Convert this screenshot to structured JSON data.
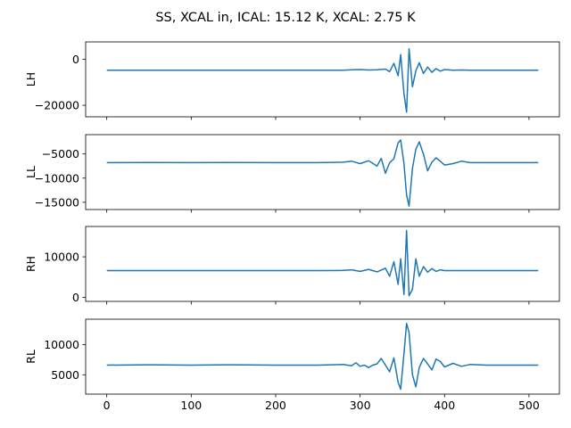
{
  "suptitle": "SS, XCAL in, ICAL: 15.12 K, XCAL: 2.75 K",
  "chart_data": [
    {
      "type": "line",
      "ylabel": "LH",
      "xlim": [
        -25,
        536
      ],
      "ylim": [
        -25000,
        7500
      ],
      "xticks": [
        0,
        100,
        200,
        300,
        400,
        500
      ],
      "yticks": [
        {
          "v": 0,
          "label": "0"
        },
        {
          "v": -20000,
          "label": "−20000"
        }
      ],
      "series": [
        {
          "color": "#1f77b4",
          "x": [
            0,
            100,
            200,
            250,
            280,
            290,
            300,
            310,
            320,
            330,
            335,
            340,
            345,
            348,
            352,
            355,
            358,
            362,
            366,
            370,
            375,
            380,
            385,
            390,
            395,
            400,
            410,
            420,
            430,
            450,
            480,
            511
          ],
          "y": [
            -4800,
            -4800,
            -4800,
            -4800,
            -4750,
            -4600,
            -4500,
            -4700,
            -4600,
            -4300,
            -5400,
            -1800,
            -7200,
            2000,
            -15000,
            -23000,
            4500,
            -12000,
            -5000,
            -1500,
            -6200,
            -3400,
            -5700,
            -4100,
            -5200,
            -4500,
            -4800,
            -4700,
            -4800,
            -4800,
            -4800,
            -4800
          ]
        }
      ]
    },
    {
      "type": "line",
      "ylabel": "LL",
      "xlim": [
        -25,
        536
      ],
      "ylim": [
        -16500,
        -1000
      ],
      "xticks": [
        0,
        100,
        200,
        300,
        400,
        500
      ],
      "yticks": [
        {
          "v": -5000,
          "label": "−5000"
        },
        {
          "v": -10000,
          "label": "−10000"
        },
        {
          "v": -15000,
          "label": "−15000"
        }
      ],
      "series": [
        {
          "color": "#1f77b4",
          "x": [
            0,
            50,
            100,
            150,
            200,
            250,
            280,
            290,
            300,
            310,
            320,
            325,
            330,
            335,
            340,
            345,
            348,
            352,
            355,
            358,
            362,
            366,
            370,
            375,
            380,
            385,
            390,
            395,
            400,
            410,
            420,
            430,
            450,
            480,
            511
          ],
          "y": [
            -6800,
            -6750,
            -6800,
            -6750,
            -6800,
            -6800,
            -6700,
            -6500,
            -7000,
            -6400,
            -7500,
            -5900,
            -9000,
            -6800,
            -6000,
            -2700,
            -2100,
            -7000,
            -13500,
            -15800,
            -8000,
            -4000,
            -2500,
            -5000,
            -8500,
            -6700,
            -5800,
            -6500,
            -7300,
            -7000,
            -6500,
            -6800,
            -6800,
            -6800,
            -6800
          ]
        }
      ]
    },
    {
      "type": "line",
      "ylabel": "RH",
      "xlim": [
        -25,
        536
      ],
      "ylim": [
        -1000,
        17500
      ],
      "xticks": [
        0,
        100,
        200,
        300,
        400,
        500
      ],
      "yticks": [
        {
          "v": 10000,
          "label": "10000"
        },
        {
          "v": 0,
          "label": "0"
        }
      ],
      "series": [
        {
          "color": "#1f77b4",
          "x": [
            0,
            100,
            200,
            250,
            280,
            290,
            300,
            310,
            320,
            330,
            335,
            340,
            345,
            348,
            352,
            355,
            358,
            362,
            366,
            370,
            375,
            380,
            385,
            390,
            395,
            400,
            420,
            450,
            480,
            511
          ],
          "y": [
            6600,
            6600,
            6600,
            6600,
            6650,
            6800,
            6400,
            6900,
            6300,
            7200,
            5200,
            8800,
            3200,
            9500,
            700,
            16500,
            400,
            2000,
            9500,
            5200,
            7600,
            6200,
            7100,
            6400,
            6800,
            6600,
            6600,
            6600,
            6600,
            6600
          ]
        }
      ]
    },
    {
      "type": "line",
      "ylabel": "RL",
      "xlim": [
        -25,
        536
      ],
      "ylim": [
        1800,
        14200
      ],
      "xticks": [
        0,
        100,
        200,
        300,
        400,
        500
      ],
      "yticks": [
        {
          "v": 10000,
          "label": "10000"
        },
        {
          "v": 5000,
          "label": "5000"
        }
      ],
      "xticklabels": [
        "0",
        "100",
        "200",
        "300",
        "400",
        "500"
      ],
      "series": [
        {
          "color": "#1f77b4",
          "x": [
            0,
            50,
            100,
            150,
            200,
            250,
            280,
            290,
            295,
            300,
            305,
            310,
            315,
            320,
            325,
            330,
            335,
            340,
            345,
            348,
            352,
            355,
            358,
            362,
            366,
            370,
            375,
            380,
            385,
            390,
            395,
            400,
            410,
            420,
            430,
            450,
            480,
            511
          ],
          "y": [
            6600,
            6650,
            6600,
            6650,
            6600,
            6600,
            6700,
            6500,
            7000,
            6400,
            6600,
            6200,
            6600,
            6800,
            7700,
            6600,
            5500,
            7800,
            3800,
            2600,
            8500,
            13500,
            12000,
            5000,
            3000,
            6200,
            7700,
            6800,
            5800,
            7600,
            7200,
            6300,
            6900,
            6400,
            6700,
            6600,
            6600,
            6600
          ]
        }
      ]
    }
  ]
}
